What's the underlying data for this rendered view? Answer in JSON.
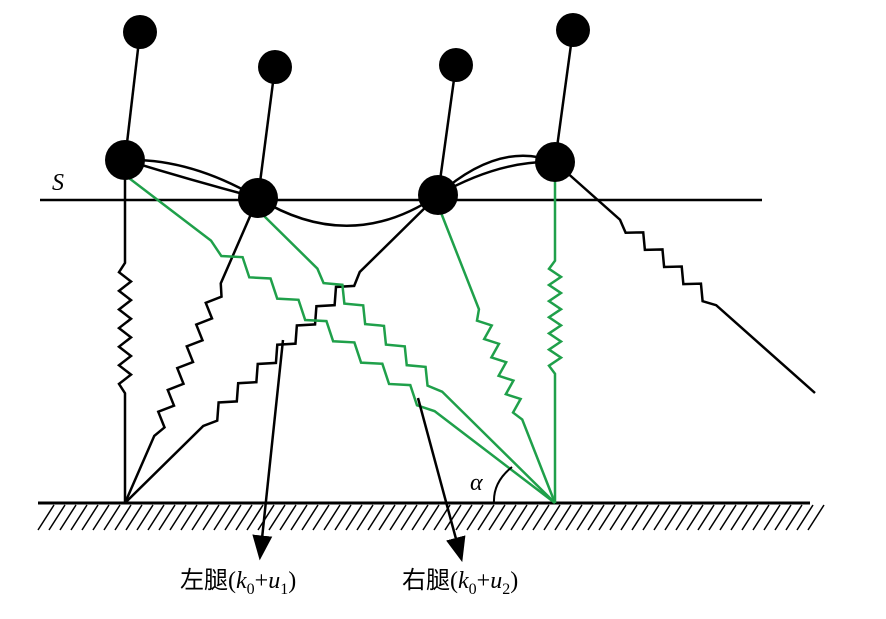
{
  "labels": {
    "surface": "S",
    "angle": "α",
    "left_leg": {
      "prefix": "左腿(",
      "k": "k",
      "k_sub": "0",
      "plus": "+",
      "u": "u",
      "u_sub": "1",
      "suffix": ")"
    },
    "right_leg": {
      "prefix": "右腿(",
      "k": "k",
      "k_sub": "0",
      "plus": "+",
      "u": "u",
      "u_sub": "2",
      "suffix": ")"
    }
  }
}
